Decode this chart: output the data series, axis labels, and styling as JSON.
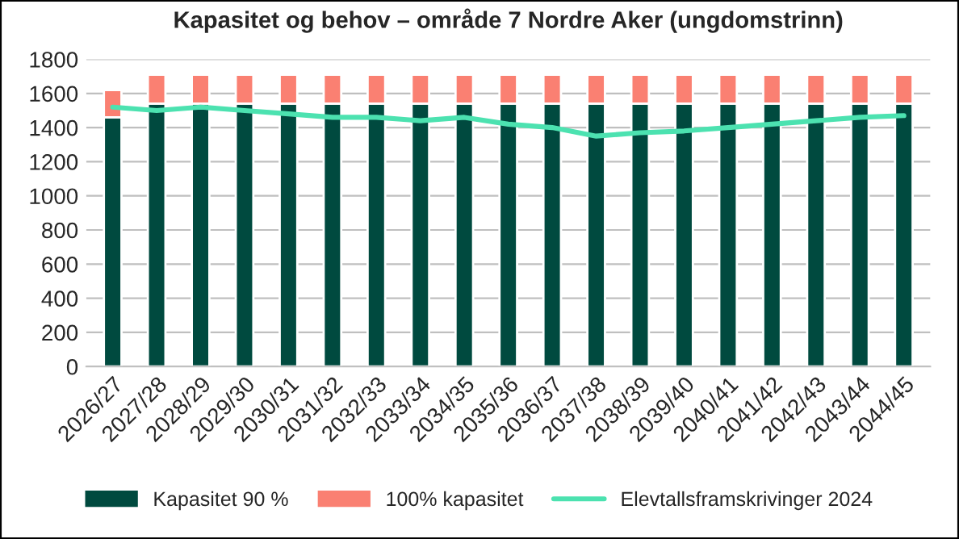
{
  "chart_data": {
    "type": "bar",
    "title": "Kapasitet og behov – område 7 Nordre Aker (ungdomstrinn)",
    "categories": [
      "2026/27",
      "2027/28",
      "2028/29",
      "2029/30",
      "2030/31",
      "2031/32",
      "2032/33",
      "2033/34",
      "2034/35",
      "2035/36",
      "2036/37",
      "2037/38",
      "2038/39",
      "2039/40",
      "2040/41",
      "2041/42",
      "2042/43",
      "2043/44",
      "2044/45"
    ],
    "stacked": true,
    "series": [
      {
        "name": "Kapasitet 90 %",
        "color": "#004a3f",
        "values": [
          1460,
          1540,
          1540,
          1540,
          1540,
          1540,
          1540,
          1540,
          1540,
          1540,
          1540,
          1540,
          1540,
          1540,
          1540,
          1540,
          1540,
          1540,
          1540
        ]
      },
      {
        "name": "100% kapasitet",
        "color": "#fa8072",
        "values": [
          160,
          170,
          170,
          170,
          170,
          170,
          170,
          170,
          170,
          170,
          170,
          170,
          170,
          170,
          170,
          170,
          170,
          170,
          170
        ]
      },
      {
        "name": "Elevtallsframskrivinger 2024",
        "color": "#4ce2b0",
        "type": "line",
        "values": [
          1520,
          1500,
          1520,
          1500,
          1480,
          1460,
          1460,
          1440,
          1460,
          1420,
          1400,
          1350,
          1370,
          1380,
          1400,
          1420,
          1440,
          1460,
          1470
        ]
      }
    ],
    "ylim": [
      0,
      1800
    ],
    "yticks": [
      0,
      200,
      400,
      600,
      800,
      1000,
      1200,
      1400,
      1600,
      1800
    ],
    "grid": "y",
    "legend": "bottom"
  }
}
